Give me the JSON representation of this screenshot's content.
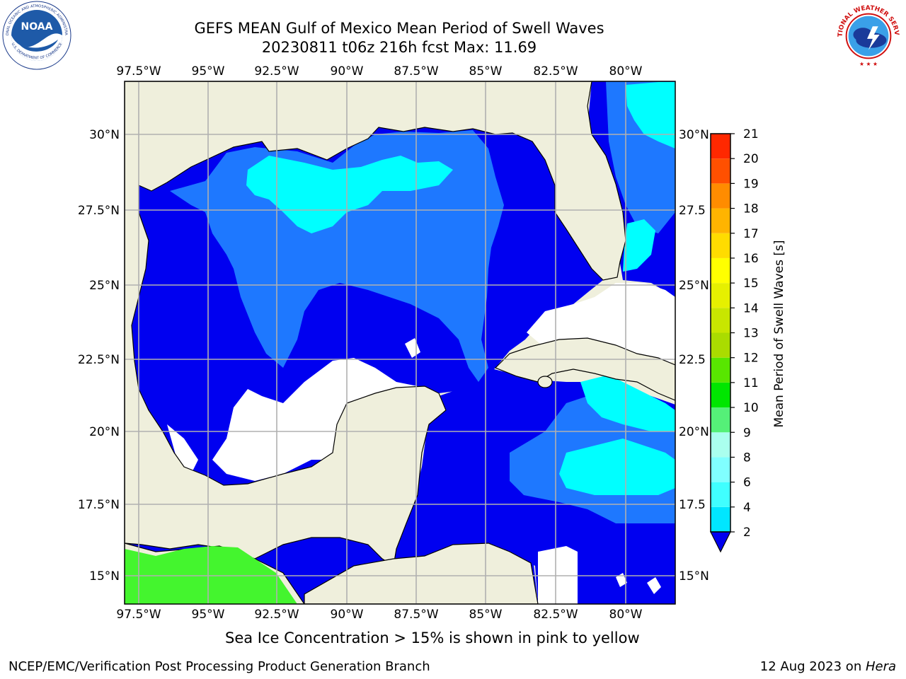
{
  "header": {
    "title": "GEFS MEAN Gulf of Mexico Mean Period of Swell Waves",
    "subtitle": "20230811 t06z 216h fcst   Max: 11.69"
  },
  "logos": {
    "left": "noaa-logo",
    "right": "national-weather-service-logo",
    "left_ring_text": "NATIONAL OCEANIC AND ATMOSPHERIC ADMINISTRATION",
    "left_center_text": "NOAA",
    "left_bottom_text": "U.S. DEPARTMENT OF COMMERCE",
    "right_ring_text": "NATIONAL WEATHER SERVICE"
  },
  "map": {
    "lon_labels": [
      "97.5°W",
      "95°W",
      "92.5°W",
      "90°W",
      "87.5°W",
      "85°W",
      "82.5°W",
      "80°W"
    ],
    "lat_labels_left": [
      "30°N",
      "27.5°N",
      "25°N",
      "22.5°N",
      "20°N",
      "17.5°N",
      "15°N"
    ],
    "lat_labels_right": [
      "30°N",
      "27.5",
      "25°N",
      "22.5",
      "20°N",
      "17.5",
      "15°N"
    ],
    "colors": {
      "land": "#efefdc",
      "ocean_low": "#0000f0",
      "ocean_mid": "#1e78ff",
      "ocean_high": "#00ffff",
      "ocean_6_8": "#40ffff",
      "land_green": "#44f52e",
      "grid": "#b0b0b0"
    }
  },
  "colorbar": {
    "label": "Mean Period of Swell Waves [s]",
    "tick_labels": [
      "2",
      "4",
      "6",
      "8",
      "9",
      "10",
      "11",
      "12",
      "13",
      "14",
      "15",
      "16",
      "17",
      "18",
      "19",
      "20",
      "21"
    ],
    "colors": [
      "#1e78ff",
      "#00e6ff",
      "#40ffff",
      "#80ffff",
      "#aaffee",
      "#55f078",
      "#00e600",
      "#58e600",
      "#aadc00",
      "#c8e600",
      "#e6f000",
      "#ffff00",
      "#ffdc00",
      "#ffb400",
      "#ff8c00",
      "#ff5000",
      "#ff2800",
      "#ff0000"
    ]
  },
  "footer": {
    "ice_note": "Sea Ice Concentration > 15% is shown in pink to yellow",
    "credit": "NCEP/EMC/Verification Post Processing Product Generation Branch",
    "date_prefix": "12 Aug 2023 on ",
    "date_machine": "Hera"
  }
}
